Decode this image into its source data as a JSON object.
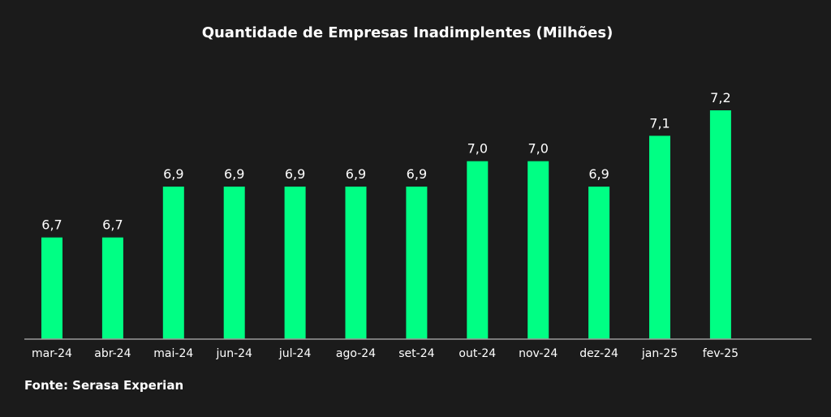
{
  "chart_data": {
    "type": "bar",
    "title": "Quantidade de Empresas Inadimplentes (Milhões)",
    "categories": [
      "mar-24",
      "abr-24",
      "mai-24",
      "jun-24",
      "jul-24",
      "ago-24",
      "set-24",
      "out-24",
      "nov-24",
      "dez-24",
      "jan-25",
      "fev-25"
    ],
    "values": [
      6.7,
      6.7,
      6.9,
      6.9,
      6.9,
      6.9,
      6.9,
      7.0,
      7.0,
      6.9,
      7.1,
      7.2
    ],
    "value_labels": [
      "6,7",
      "6,7",
      "6,9",
      "6,9",
      "6,9",
      "6,9",
      "6,9",
      "7,0",
      "7,0",
      "6,9",
      "7,1",
      "7,2"
    ],
    "xlabel": "",
    "ylabel": "",
    "ylim": [
      6.3,
      7.2
    ],
    "grid": false,
    "legend": "none"
  },
  "source": "Fonte: Serasa Experian",
  "colors": {
    "background": "#1b1b1b",
    "bar": "#00ff84",
    "axis": "#9a9a9a",
    "text": "#ffffff"
  }
}
